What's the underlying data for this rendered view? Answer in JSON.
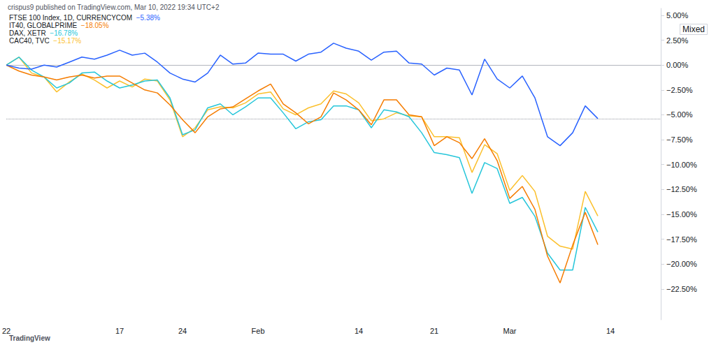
{
  "chart_data": {
    "type": "line",
    "title": "crispus9 published on TradingView.com, Mar 10, 2022 19:34 UTC+2",
    "annotations": [
      "Mixed",
      "TradingView"
    ],
    "legend": "top-left",
    "grid": false,
    "x": [
      "22",
      null,
      null,
      null,
      null,
      null,
      null,
      null,
      null,
      "17",
      null,
      null,
      null,
      null,
      "24",
      null,
      null,
      null,
      null,
      null,
      "Feb",
      null,
      null,
      null,
      null,
      null,
      null,
      null,
      "14",
      null,
      null,
      null,
      null,
      null,
      "21",
      null,
      null,
      null,
      null,
      null,
      "Mar",
      null,
      null,
      null,
      null,
      null,
      null,
      null,
      "14",
      null,
      null,
      null,
      null
    ],
    "ylim": [
      -25.6,
      5.7
    ],
    "yticks": [
      {
        "value": 5,
        "label": "5.00%"
      },
      {
        "value": 2.5,
        "label": "2.50%"
      },
      {
        "value": 0,
        "label": "0.00%"
      },
      {
        "value": -2.5,
        "label": "−2.50%"
      },
      {
        "value": -5,
        "label": "−5.00%"
      },
      {
        "value": -7.5,
        "label": "−7.50%"
      },
      {
        "value": -10,
        "label": "−10.00%"
      },
      {
        "value": -12.5,
        "label": "−12.50%"
      },
      {
        "value": -15,
        "label": "−15.00%"
      },
      {
        "value": -17.5,
        "label": "−17.50%"
      },
      {
        "value": -20,
        "label": "−20.00%"
      },
      {
        "value": -22.5,
        "label": "−22.50%"
      }
    ],
    "series": [
      {
        "name": "FTSE 100 Index, 1D, CURRENCYCOM",
        "legend_value": "−5.38%",
        "color": "#2962ff",
        "values": [
          0,
          -0.3,
          -0.4,
          0,
          -0.2,
          0.3,
          0.8,
          0.6,
          1.0,
          1.5,
          1.0,
          1.2,
          0.3,
          -0.8,
          -1.4,
          -1.7,
          -0.8,
          1.0,
          0.1,
          0.2,
          1.2,
          1.1,
          1.1,
          0.4,
          1.1,
          1.3,
          2.2,
          1.7,
          1.4,
          0.5,
          1.3,
          1.4,
          0.2,
          0.1,
          -1.0,
          -0.3,
          -0.5,
          -3.0,
          0.6,
          -1.4,
          -2.3,
          -1.1,
          -3.3,
          -7.2,
          -8.1,
          -6.8,
          -4.1,
          -5.38,
          null,
          null,
          null,
          null,
          null
        ]
      },
      {
        "name": "IT40, GLOBALPRIME",
        "legend_value": "−18.05%",
        "color": "#f57c00",
        "values": [
          0,
          -0.6,
          -1.0,
          -1.2,
          -1.5,
          -1.2,
          -1.0,
          -1.3,
          -1.1,
          -1.1,
          -1.8,
          -2.5,
          -2.8,
          -4.0,
          -5.5,
          -6.8,
          -5.2,
          -4.4,
          -4.2,
          -3.4,
          -2.6,
          -1.9,
          -3.9,
          -4.8,
          -5.9,
          -5.2,
          -2.8,
          -3.5,
          -4.5,
          -6.0,
          -3.5,
          -3.5,
          -5.0,
          -5.2,
          -8.1,
          -7.2,
          -7.8,
          -9.4,
          -7.4,
          -9.6,
          -13.4,
          -12.2,
          -14.5,
          -19.2,
          -21.9,
          -18.1,
          -14.8,
          -18.05,
          null,
          null,
          null,
          null,
          null
        ]
      },
      {
        "name": "DAX, XETR",
        "legend_value": "−16.78%",
        "color": "#26c6da",
        "values": [
          0,
          0.8,
          -0.5,
          -1.2,
          -2.3,
          -1.8,
          -0.8,
          -0.7,
          -1.6,
          -2.3,
          -2.0,
          -1.6,
          -1.5,
          -3.3,
          -7.0,
          -6.5,
          -4.3,
          -3.9,
          -5.0,
          -4.2,
          -3.3,
          -3.3,
          -4.8,
          -6.4,
          -5.7,
          -5.5,
          -4.1,
          -4.1,
          -4.5,
          -6.3,
          -4.5,
          -4.7,
          -5.2,
          -6.8,
          -8.8,
          -9.0,
          -9.3,
          -12.9,
          -9.8,
          -10.4,
          -13.9,
          -13.3,
          -15.2,
          -18.9,
          -20.6,
          -20.6,
          -14.3,
          -16.78,
          null,
          null,
          null,
          null,
          null
        ]
      },
      {
        "name": "CAC40, TVC",
        "legend_value": "−15.17%",
        "color": "#fbc02d",
        "values": [
          0,
          0.8,
          -0.8,
          -1.2,
          -2.7,
          -1.7,
          -0.9,
          -1.5,
          -2.3,
          -1.6,
          -2.2,
          -1.4,
          -1.6,
          -3.5,
          -7.2,
          -6.3,
          -4.5,
          -4.2,
          -4.3,
          -3.8,
          -2.9,
          -2.7,
          -4.4,
          -5.0,
          -4.3,
          -3.9,
          -2.6,
          -2.9,
          -3.8,
          -5.6,
          -5.4,
          -4.8,
          -5.1,
          -5.2,
          -7.2,
          -7.2,
          -7.3,
          -10.8,
          -8.0,
          -8.9,
          -12.6,
          -11.1,
          -12.7,
          -17.2,
          -18.2,
          -18.5,
          -12.7,
          -15.17,
          null,
          null,
          null,
          null,
          null
        ]
      }
    ]
  }
}
